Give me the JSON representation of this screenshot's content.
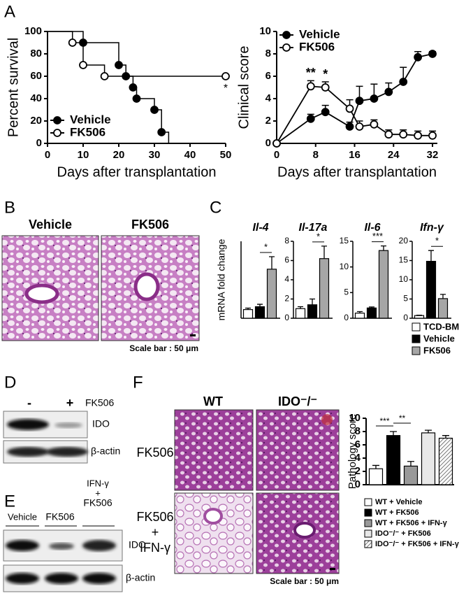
{
  "panel_labels": [
    "A",
    "B",
    "C",
    "D",
    "E",
    "F"
  ],
  "chart_data": [
    {
      "type": "step",
      "ylabel": "Percent survival",
      "xlabel": "Days after transplantation",
      "xlim": [
        0,
        50
      ],
      "xticks": [
        0,
        10,
        20,
        30,
        40,
        50
      ],
      "ylim": [
        0,
        100
      ],
      "yticks": [
        0,
        20,
        40,
        60,
        80,
        100
      ],
      "legend": "lower left",
      "series": [
        {
          "name": "Vehicle",
          "color": "#000000",
          "marker": "filled",
          "x": [
            0,
            10,
            20,
            22,
            24,
            25,
            30,
            32,
            34
          ],
          "values": [
            100,
            90,
            70,
            60,
            50,
            40,
            30,
            10,
            0
          ]
        },
        {
          "name": "FK506",
          "color": "#000000",
          "marker": "open",
          "x": [
            0,
            7,
            10,
            16,
            50
          ],
          "values": [
            100,
            90,
            70,
            60,
            60
          ]
        }
      ],
      "annotations": [
        {
          "text": "*",
          "x": 50
        }
      ]
    },
    {
      "type": "line",
      "ylabel": "Clinical score",
      "xlabel": "Days after transplantation",
      "xlim": [
        0,
        33
      ],
      "xticks": [
        0,
        8,
        16,
        24,
        32
      ],
      "ylim": [
        0,
        10
      ],
      "yticks": [
        0,
        2,
        4,
        6,
        8,
        10
      ],
      "legend": "upper left",
      "x": [
        0,
        7,
        10,
        15,
        17,
        20,
        23,
        26,
        29,
        32
      ],
      "series": [
        {
          "name": "Vehicle",
          "color": "#000000",
          "marker": "filled",
          "values": [
            0,
            2.2,
            2.8,
            1.5,
            3.8,
            4.0,
            4.6,
            5.5,
            7.7,
            8.0
          ],
          "errors": [
            0,
            0.4,
            0.6,
            0.4,
            1.3,
            1.3,
            0.8,
            1.3,
            0.5,
            0.2
          ]
        },
        {
          "name": "FK506",
          "color": "#000000",
          "marker": "open",
          "values": [
            0,
            5.1,
            5.0,
            3.1,
            1.5,
            1.7,
            0.8,
            0.8,
            0.7,
            0.7
          ],
          "errors": [
            0,
            0.5,
            0.5,
            0.8,
            0.5,
            0.4,
            0.4,
            0.4,
            0.4,
            0.4
          ]
        }
      ],
      "annotations": [
        {
          "text": "**",
          "x": 7
        },
        {
          "text": "*",
          "x": 10
        }
      ]
    },
    {
      "type": "bar-facets",
      "ylabel": "mRNA fold change",
      "legend": [
        {
          "name": "TCD-BM",
          "color": "#ffffff"
        },
        {
          "name": "Vehicle",
          "color": "#000000"
        },
        {
          "name": "FK506",
          "color": "#a6a6a6"
        }
      ],
      "facets": [
        {
          "title": "Il-4",
          "ylim": [
            0,
            8
          ],
          "values": [
            0.9,
            1.2,
            5.1
          ],
          "errors": [
            0.15,
            0.25,
            1.3
          ],
          "annotation": "*"
        },
        {
          "title": "Il-17a",
          "ylim": [
            0,
            8
          ],
          "yticks": [
            0,
            2,
            4,
            6,
            8
          ],
          "values": [
            1.0,
            1.4,
            6.2
          ],
          "errors": [
            0.2,
            0.6,
            1.3
          ],
          "annotation": "*"
        },
        {
          "title": "Il-6",
          "ylim": [
            0,
            15
          ],
          "yticks": [
            0,
            5,
            10,
            15
          ],
          "values": [
            1.0,
            2.0,
            13.2
          ],
          "errors": [
            0.3,
            0.2,
            0.9
          ],
          "annotation": "***"
        },
        {
          "title": "Ifn-γ",
          "ylim": [
            0,
            20
          ],
          "yticks": [
            0,
            5,
            10,
            15,
            20
          ],
          "values": [
            0.7,
            14.8,
            5.1
          ],
          "errors": [
            0.1,
            2.8,
            1.1
          ],
          "annotation": "*"
        }
      ]
    },
    {
      "type": "bar",
      "ylabel": "Pathology score",
      "ylim": [
        0,
        10
      ],
      "yticks": [
        0,
        2,
        4,
        6,
        8,
        10
      ],
      "categories": [
        "WT + Vehicle",
        "WT + FK506",
        "WT + FK506 + IFN-γ",
        "IDO⁻/⁻ + FK506",
        "IDO⁻/⁻ + FK506 + IFN-γ"
      ],
      "colors": [
        "#ffffff",
        "#000000",
        "#999999",
        "#e8e8e8",
        "hatch"
      ],
      "values": [
        2.4,
        7.4,
        2.8,
        7.8,
        7.0
      ],
      "errors": [
        0.5,
        0.6,
        0.7,
        0.4,
        0.4
      ],
      "annotations": [
        "***",
        "**"
      ]
    }
  ],
  "histology_b": {
    "labels": [
      "Vehicle",
      "FK506"
    ],
    "scale_bar": "Scale bar : 50 μm"
  },
  "blot_d": {
    "lanes": [
      "-",
      "+"
    ],
    "treatment": "FK506",
    "rows": [
      "IDO",
      "β-actin"
    ]
  },
  "blot_e": {
    "lanes": [
      "Vehicle",
      "FK506"
    ],
    "combo": [
      "IFN-γ",
      "+",
      "FK506"
    ],
    "rows": [
      "IDO",
      "β-actin"
    ]
  },
  "histology_f": {
    "columns": [
      "WT",
      "IDO⁻/⁻"
    ],
    "row1": "FK506",
    "row2": [
      "FK506",
      "+",
      "IFN-γ"
    ],
    "scale_bar": "Scale bar : 50 μm"
  }
}
